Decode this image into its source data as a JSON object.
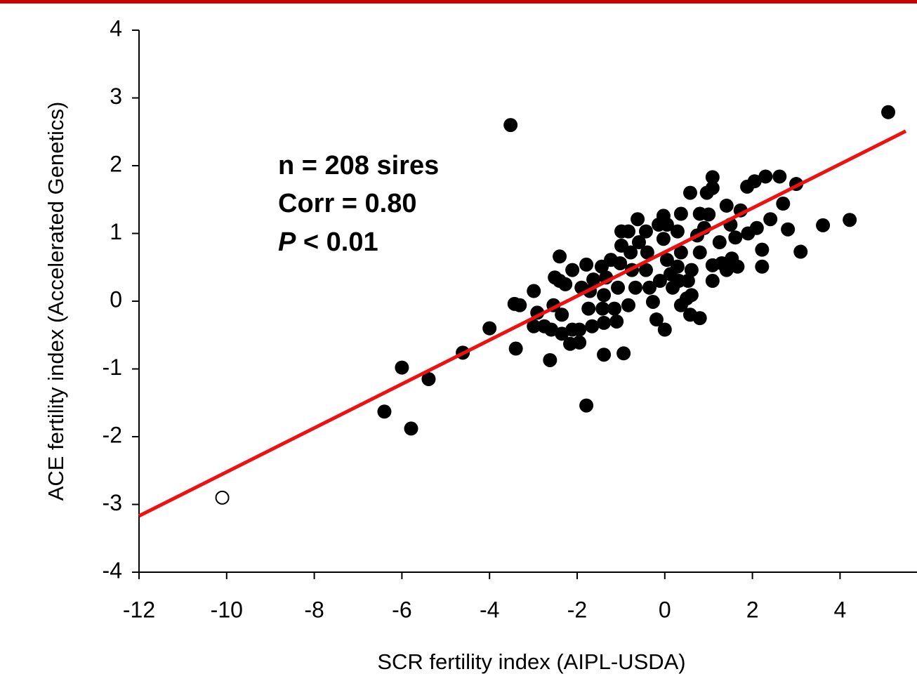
{
  "chart_data": {
    "type": "scatter",
    "xlabel": "SCR fertility index (AIPL-USDA)",
    "ylabel": "ACE fertility index (Accelerated Genetics)",
    "annotations": [
      "n = 208 sires",
      "Corr = 0.80",
      "P",
      " < 0.01"
    ],
    "xlim": [
      -12,
      5.5
    ],
    "ylim": [
      -4,
      4
    ],
    "xticks": [
      -12,
      -10,
      -8,
      -6,
      -4,
      -2,
      0,
      2,
      4
    ],
    "yticks": [
      -4,
      -3,
      -2,
      -1,
      0,
      1,
      2,
      3,
      4
    ],
    "fit": {
      "x": [
        -12,
        5.5
      ],
      "y": [
        -3.17,
        2.51
      ],
      "color": "#ee1111"
    },
    "series": [
      {
        "color": "#000000",
        "marker": "filled",
        "x": [
          5.1,
          -3.52,
          4.22,
          3.61,
          3.1,
          3.0,
          2.81,
          2.7,
          2.62,
          2.3,
          2.05,
          1.88,
          2.41,
          2.22,
          2.22,
          2.1,
          1.9,
          1.61,
          1.53,
          1.66,
          1.41,
          1.41,
          1.09,
          1.09,
          0.96,
          1.0,
          0.9,
          1.09,
          1.09,
          1.25,
          1.3,
          0.58,
          0.8,
          0.74,
          0.8,
          0.61,
          0.53,
          0.61,
          0.8,
          0.58,
          0.37,
          0.5,
          0.32,
          0.29,
          0.37,
          0.29,
          0.37,
          -0.03,
          -0.03,
          0.05,
          0.13,
          -0.11,
          -0.35,
          -0.27,
          -0.19,
          0,
          -0.43,
          -0.4,
          -0.59,
          -0.43,
          -0.62,
          -0.83,
          -0.78,
          -0.75,
          -0.67,
          -0.83,
          -0.99,
          -1.02,
          -0.99,
          -1.07,
          -1.15,
          -1.1,
          -0.94,
          -1.23,
          -1.34,
          -1.39,
          -1.44,
          -1.42,
          -1.39,
          -1.39,
          -1.63,
          -1.71,
          -1.74,
          -1.66,
          -1.79,
          -1.79,
          -1.9,
          -1.95,
          -1.95,
          -2.11,
          -2.11,
          -2.16,
          -2.27,
          -2.35,
          -2.35,
          -2.4,
          -2.4,
          -2.51,
          -2.54,
          -2.59,
          -2.62,
          -2.75,
          -2.91,
          -2.99,
          -2.99,
          -3.31,
          -3.43,
          -3.4,
          -4.0,
          -4.61,
          -5.39,
          -6.0,
          -5.79,
          -6.4,
          0.05,
          0.18,
          -0.14,
          1.5,
          1.73
        ],
        "values": [
          2.79,
          2.6,
          1.2,
          1.12,
          0.73,
          1.73,
          1.06,
          1.44,
          1.84,
          1.84,
          1.77,
          1.69,
          1.21,
          0.76,
          0.51,
          1.08,
          1.0,
          0.94,
          0.63,
          0.51,
          0.46,
          1.41,
          1.67,
          1.83,
          1.6,
          1.28,
          1.08,
          0.53,
          0.3,
          0.87,
          0.56,
          1.6,
          1.29,
          0.97,
          0.72,
          0.46,
          0.3,
          0.09,
          -0.25,
          -0.2,
          -0.06,
          0.04,
          0.3,
          0.51,
          0.72,
          1.03,
          1.29,
          1.26,
          0.92,
          0.61,
          0.4,
          0.3,
          0.2,
          -0.01,
          -0.27,
          -0.42,
          0.46,
          0.72,
          0.87,
          1.03,
          1.21,
          1.03,
          0.72,
          0.46,
          0.2,
          -0.06,
          0.82,
          0.56,
          1.03,
          0.2,
          -0.11,
          -0.3,
          -0.77,
          0.61,
          0.35,
          0.09,
          0.51,
          -0.11,
          -0.32,
          -0.79,
          0.32,
          0.15,
          -0.11,
          -0.37,
          0.54,
          -1.54,
          0.2,
          -0.42,
          -0.61,
          0.46,
          -0.42,
          -0.63,
          0.25,
          -0.2,
          -0.48,
          0.66,
          0.3,
          0.35,
          -0.06,
          -0.42,
          -0.87,
          -0.37,
          -0.17,
          0.15,
          -0.37,
          -0.06,
          -0.04,
          -0.7,
          -0.4,
          -0.76,
          -1.15,
          -0.98,
          -1.88,
          -1.63,
          1.13,
          0.2,
          1.13,
          1.13,
          1.34
        ]
      },
      {
        "color": "#000000",
        "marker": "open",
        "x": [
          -10.1
        ],
        "values": [
          -2.9
        ]
      }
    ]
  }
}
